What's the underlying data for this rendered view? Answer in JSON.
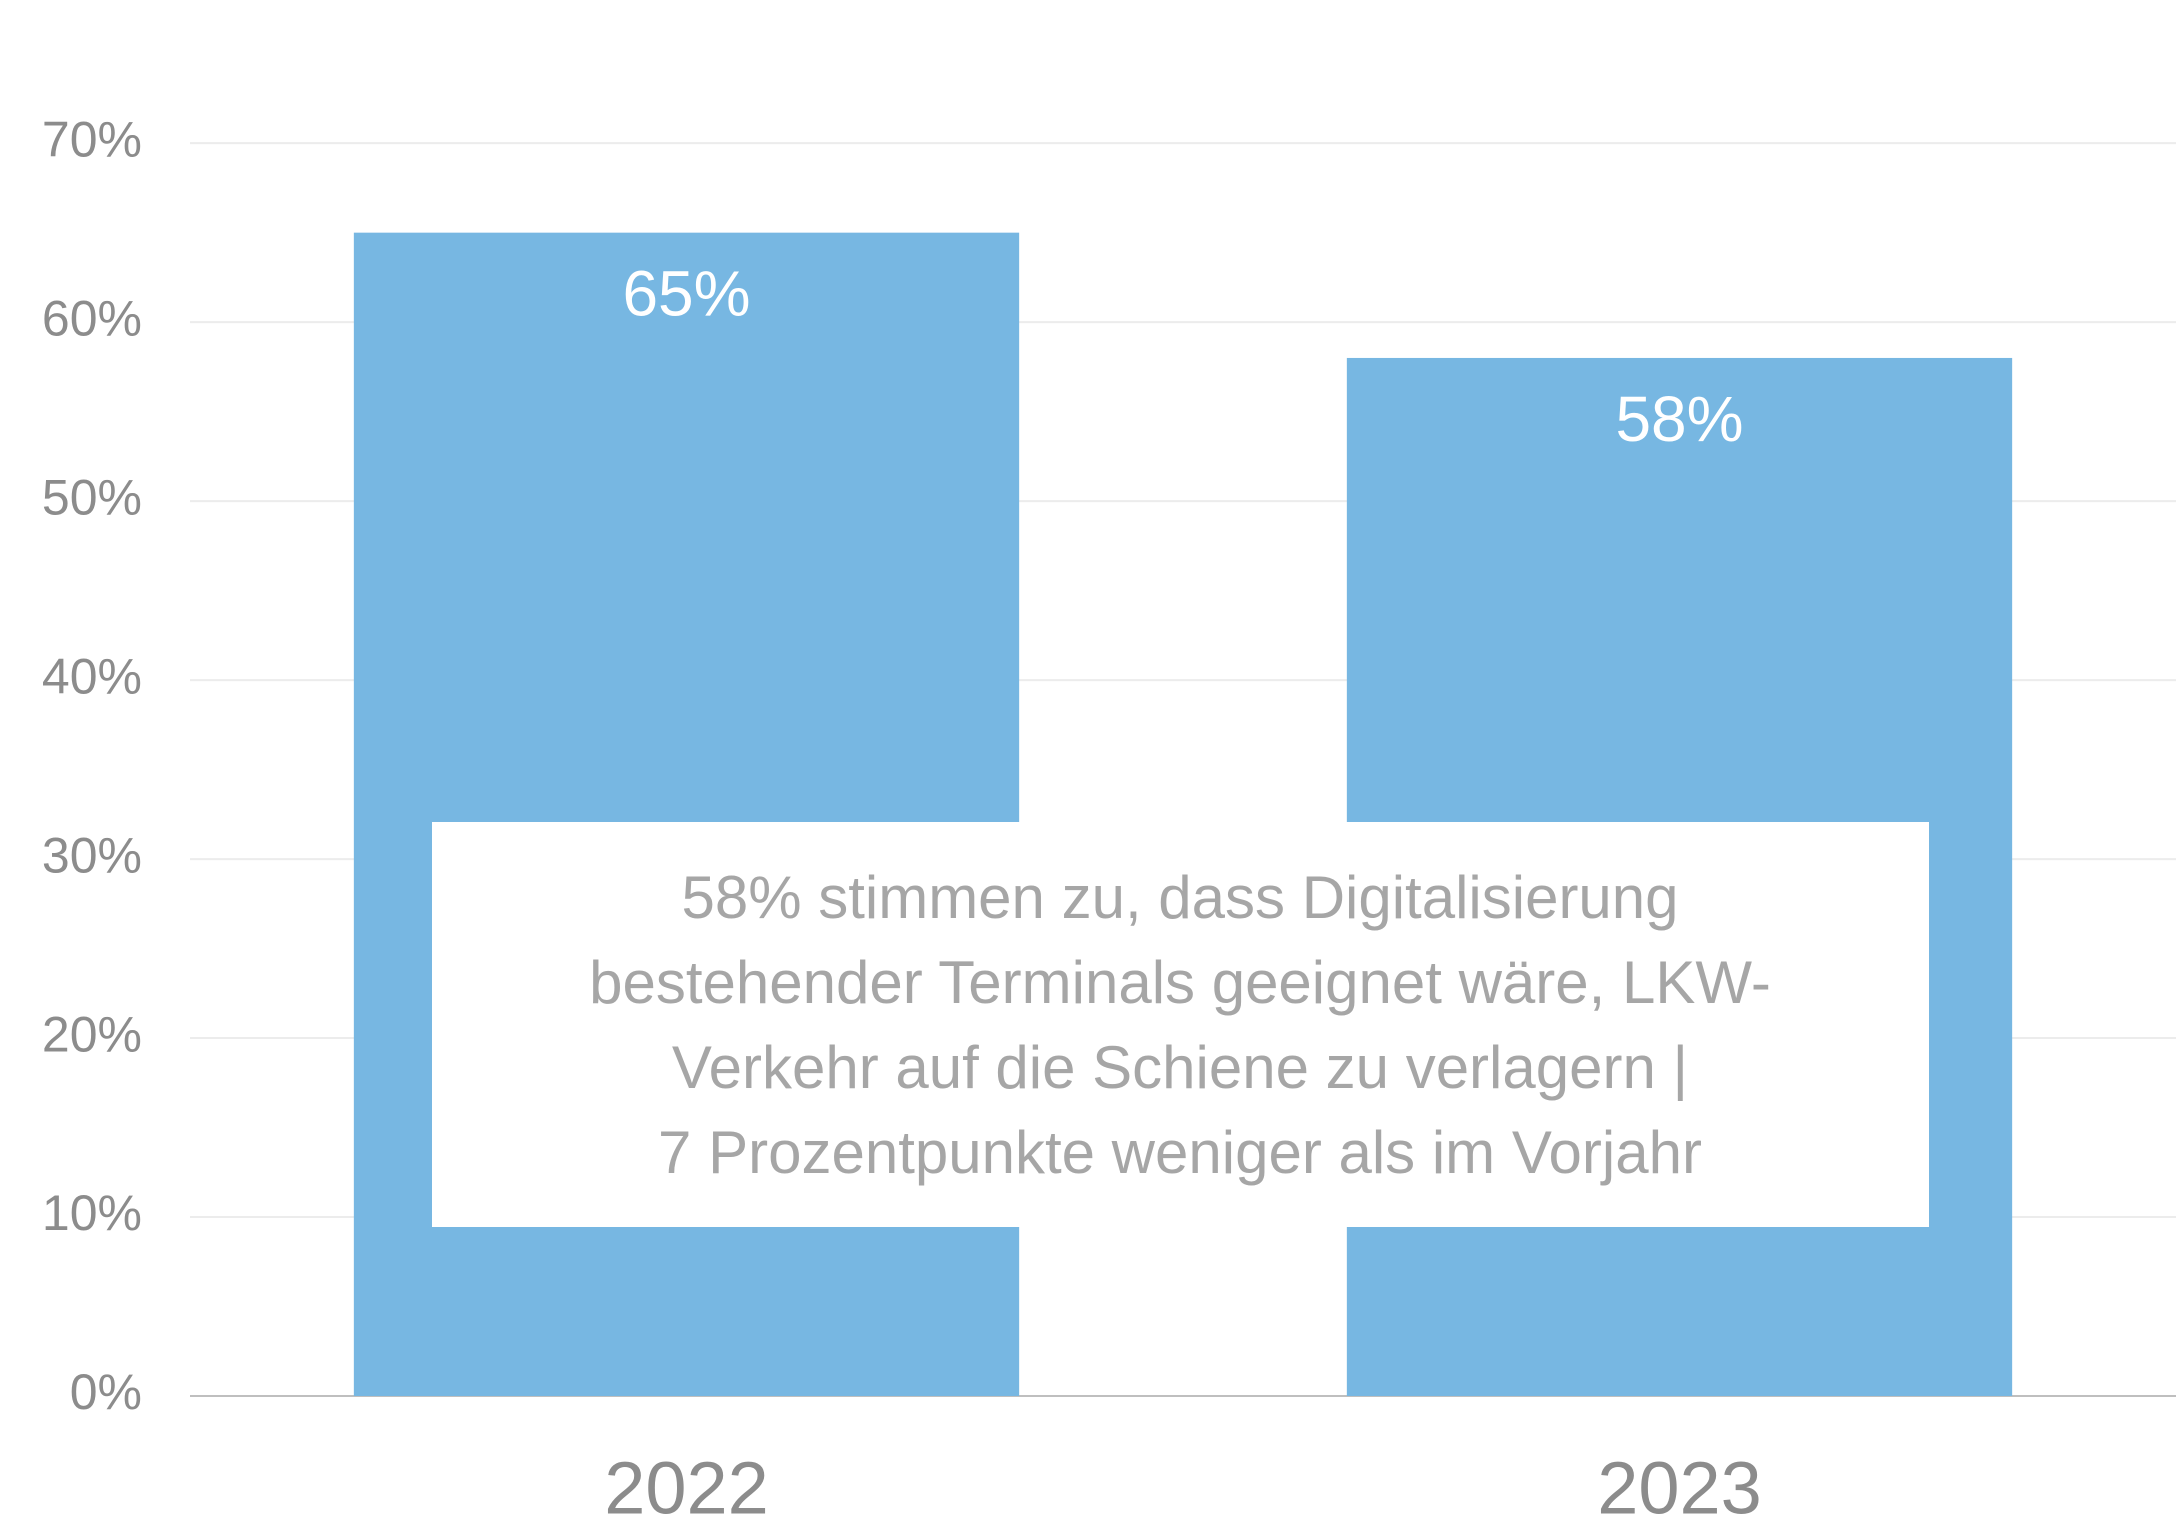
{
  "chart_data": {
    "type": "bar",
    "categories": [
      "2022",
      "2023"
    ],
    "values": [
      65,
      58
    ],
    "value_labels": [
      "65%",
      "58%"
    ],
    "color": "#77b7e2",
    "ylim": [
      0,
      78
    ],
    "yticks": [
      {
        "value": 0,
        "label": "0%"
      },
      {
        "value": 10,
        "label": "10%"
      },
      {
        "value": 20,
        "label": "20%"
      },
      {
        "value": 30,
        "label": "30%"
      },
      {
        "value": 40,
        "label": "40%"
      },
      {
        "value": 50,
        "label": "50%"
      },
      {
        "value": 60,
        "label": "60%"
      },
      {
        "value": 70,
        "label": "70%"
      }
    ],
    "grid": true,
    "annotation": [
      "58% stimmen zu, dass Digitalisierung",
      "bestehender Terminals geeignet wäre, LKW-",
      "Verkehr auf die Schiene zu verlagern |",
      "7 Prozentpunkte weniger als im Vorjahr"
    ]
  }
}
